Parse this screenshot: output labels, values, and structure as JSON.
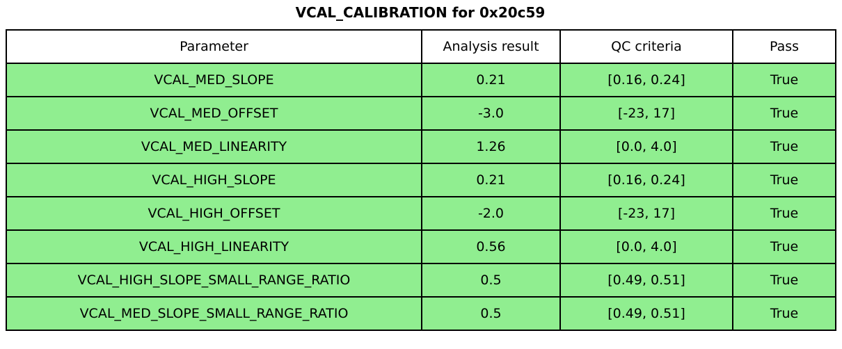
{
  "title": "VCAL_CALIBRATION for 0x20c59",
  "colors": {
    "row_bg": "#90EE90",
    "header_bg": "#ffffff",
    "border": "#000000",
    "text": "#000000"
  },
  "chart_data": {
    "type": "table",
    "title": "VCAL_CALIBRATION for 0x20c59",
    "columns": [
      "Parameter",
      "Analysis result",
      "QC criteria",
      "Pass"
    ],
    "rows": [
      [
        "VCAL_MED_SLOPE",
        "0.21",
        "[0.16, 0.24]",
        "True"
      ],
      [
        "VCAL_MED_OFFSET",
        "-3.0",
        "[-23, 17]",
        "True"
      ],
      [
        "VCAL_MED_LINEARITY",
        "1.26",
        "[0.0, 4.0]",
        "True"
      ],
      [
        "VCAL_HIGH_SLOPE",
        "0.21",
        "[0.16, 0.24]",
        "True"
      ],
      [
        "VCAL_HIGH_OFFSET",
        "-2.0",
        "[-23, 17]",
        "True"
      ],
      [
        "VCAL_HIGH_LINEARITY",
        "0.56",
        "[0.0, 4.0]",
        "True"
      ],
      [
        "VCAL_HIGH_SLOPE_SMALL_RANGE_RATIO",
        "0.5",
        "[0.49, 0.51]",
        "True"
      ],
      [
        "VCAL_MED_SLOPE_SMALL_RANGE_RATIO",
        "0.5",
        "[0.49, 0.51]",
        "True"
      ]
    ],
    "cell_color": "#90EE90",
    "header_color": "#ffffff",
    "all_pass": true
  }
}
